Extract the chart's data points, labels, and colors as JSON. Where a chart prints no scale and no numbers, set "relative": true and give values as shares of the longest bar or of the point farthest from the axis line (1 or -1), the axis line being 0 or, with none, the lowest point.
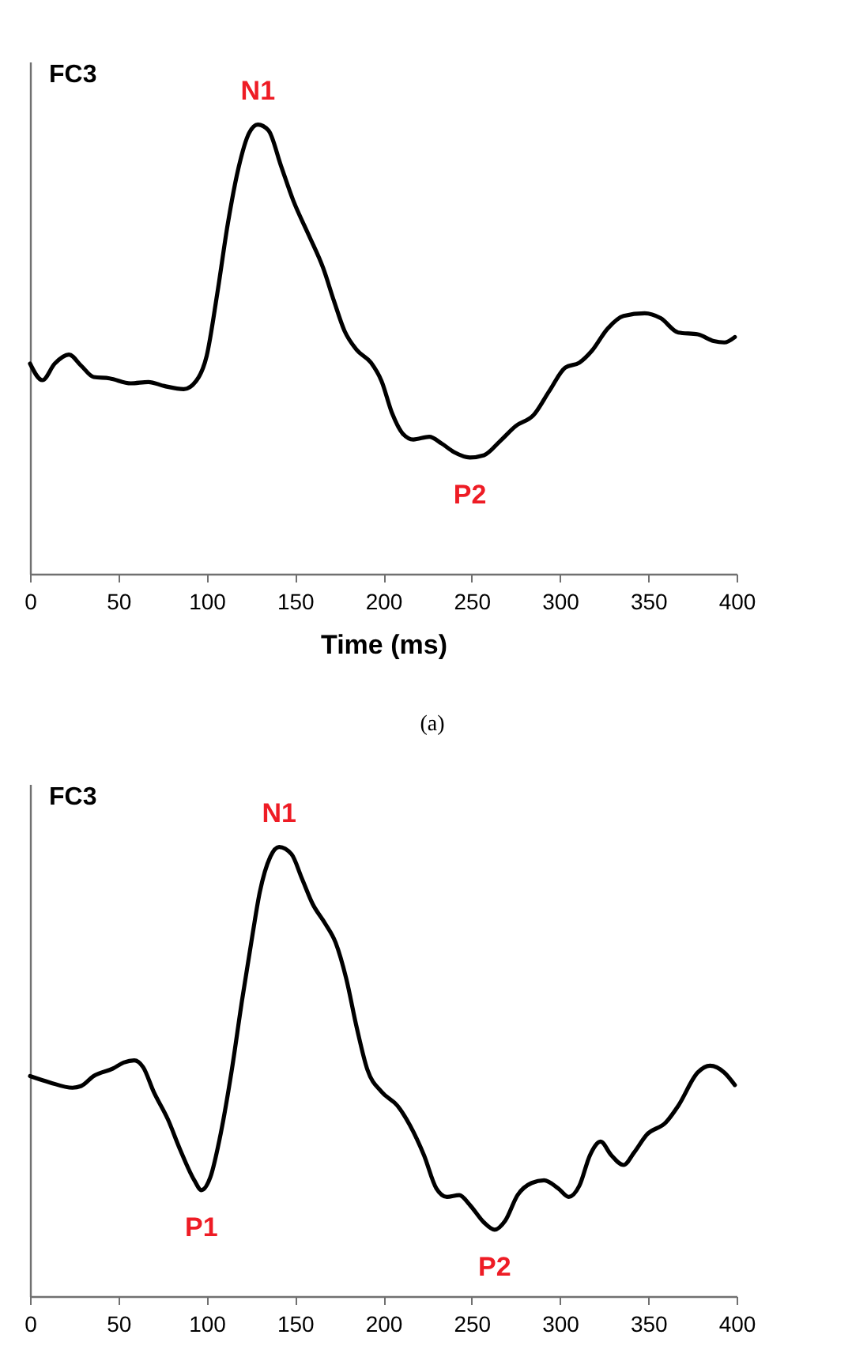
{
  "chart_data": [
    {
      "type": "line",
      "title": "FC3",
      "xlabel": "Time (ms)",
      "relative": true,
      "line_style": "solid",
      "annotations": [
        {
          "text": "N1",
          "x": 129,
          "y": 1.0
        },
        {
          "text": "P2",
          "x": 249,
          "y": 0.259
        },
        "(a)"
      ],
      "xlim": [
        0,
        400
      ],
      "xticks": [
        0,
        50,
        100,
        150,
        200,
        250,
        300,
        350,
        400
      ],
      "x": [
        0,
        7,
        14,
        22,
        29,
        36,
        45,
        57,
        67,
        76,
        87,
        94,
        100,
        106,
        112,
        118,
        124,
        129,
        135,
        142,
        149,
        158,
        166,
        172,
        178,
        185,
        193,
        199,
        205,
        211,
        217,
        226,
        233,
        240,
        249,
        257,
        266,
        275,
        285,
        294,
        303,
        311,
        318,
        327,
        336,
        348,
        357,
        367,
        378,
        387,
        393,
        399
      ],
      "series": [
        {
          "color": "#000000",
          "values": [
            0.468,
            0.431,
            0.468,
            0.488,
            0.463,
            0.438,
            0.435,
            0.424,
            0.427,
            0.418,
            0.411,
            0.429,
            0.485,
            0.624,
            0.78,
            0.903,
            0.981,
            1.0,
            0.987,
            0.909,
            0.831,
            0.752,
            0.68,
            0.608,
            0.541,
            0.498,
            0.47,
            0.429,
            0.357,
            0.312,
            0.299,
            0.305,
            0.29,
            0.271,
            0.259,
            0.264,
            0.295,
            0.329,
            0.353,
            0.407,
            0.459,
            0.47,
            0.496,
            0.546,
            0.574,
            0.58,
            0.569,
            0.537,
            0.533,
            0.518,
            0.515,
            0.527
          ]
        }
      ]
    },
    {
      "type": "line",
      "title": "FC3",
      "relative": true,
      "line_style": "solid",
      "annotations": [
        {
          "text": "N1",
          "x": 141,
          "y": 1.0
        },
        {
          "text": "P1",
          "x": 97,
          "y": 0.236
        },
        {
          "text": "P2",
          "x": 263,
          "y": 0.148
        }
      ],
      "xlim": [
        0,
        400
      ],
      "xticks": [
        0,
        50,
        100,
        150,
        200,
        250,
        300,
        350,
        400
      ],
      "x": [
        0,
        11,
        24,
        29,
        36,
        47,
        53,
        59,
        64,
        70,
        78,
        85,
        93,
        97,
        102,
        108,
        114,
        120,
        126,
        130,
        136,
        141,
        148,
        154,
        160,
        167,
        173,
        179,
        185,
        191,
        199,
        208,
        215,
        223,
        230,
        236,
        243,
        249,
        257,
        263,
        269,
        276,
        284,
        291,
        299,
        305,
        311,
        317,
        323,
        329,
        336,
        342,
        349,
        360,
        367,
        378,
        385,
        393,
        399
      ],
      "series": [
        {
          "color": "#000000",
          "values": [
            0.49,
            0.476,
            0.464,
            0.468,
            0.49,
            0.507,
            0.52,
            0.525,
            0.51,
            0.455,
            0.394,
            0.326,
            0.258,
            0.236,
            0.264,
            0.363,
            0.498,
            0.658,
            0.806,
            0.898,
            0.978,
            1.0,
            0.984,
            0.929,
            0.873,
            0.83,
            0.787,
            0.707,
            0.597,
            0.504,
            0.455,
            0.424,
            0.381,
            0.314,
            0.24,
            0.221,
            0.225,
            0.203,
            0.164,
            0.148,
            0.168,
            0.225,
            0.252,
            0.258,
            0.24,
            0.221,
            0.246,
            0.314,
            0.344,
            0.314,
            0.292,
            0.32,
            0.359,
            0.387,
            0.424,
            0.498,
            0.513,
            0.498,
            0.47
          ]
        }
      ]
    }
  ]
}
